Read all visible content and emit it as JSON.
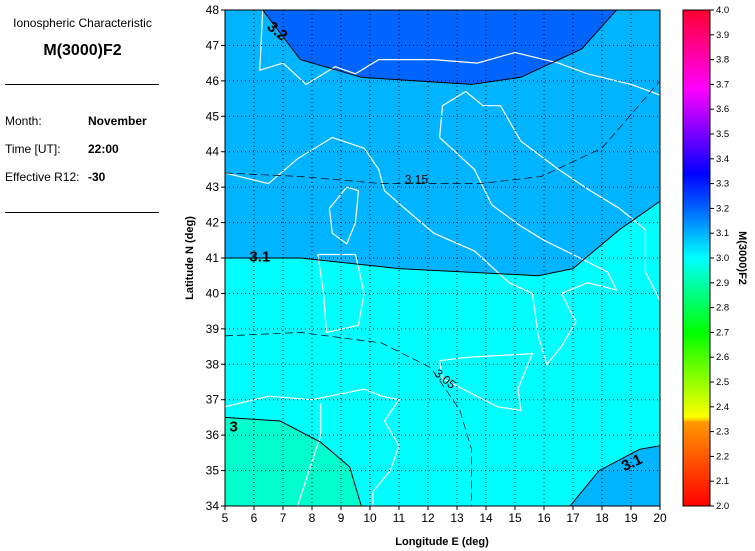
{
  "panel": {
    "subtitle": "Ionospheric Characteristic",
    "title": "M(3000)F2",
    "month_label": "Month:",
    "month": "November",
    "time_label": "Time [UT]:",
    "time": "22:00",
    "r12_label": "Effective R12:",
    "r12": "-30"
  },
  "chart_data": {
    "type": "heatmap",
    "subtype": "filled-contour map",
    "xlabel": "Longitude E (deg)",
    "ylabel": "Latitude N (deg)",
    "xlim": [
      5,
      20
    ],
    "ylim": [
      34,
      48
    ],
    "xticks": [
      "5",
      "6",
      "7",
      "8",
      "9",
      "10",
      "11",
      "12",
      "13",
      "14",
      "15",
      "16",
      "17",
      "18",
      "19",
      "20"
    ],
    "yticks": [
      "34",
      "35",
      "36",
      "37",
      "38",
      "39",
      "40",
      "41",
      "42",
      "43",
      "44",
      "45",
      "46",
      "47",
      "48"
    ],
    "grid": true,
    "contours": [
      {
        "level": "3.2",
        "style": "solid",
        "points": [
          [
            6.3,
            48
          ],
          [
            7.6,
            46.6
          ],
          [
            9.7,
            46.1
          ],
          [
            13.5,
            45.9
          ],
          [
            15.2,
            46.1
          ],
          [
            17.3,
            46.9
          ],
          [
            18.5,
            48
          ]
        ]
      },
      {
        "level": "3.15",
        "style": "dashed",
        "points": [
          [
            5,
            43.4
          ],
          [
            7.6,
            43.3
          ],
          [
            10.4,
            43.1
          ],
          [
            13.8,
            43.1
          ],
          [
            15.9,
            43.3
          ],
          [
            18,
            44.1
          ],
          [
            20,
            46
          ]
        ]
      },
      {
        "level": "3.1",
        "style": "solid",
        "points": [
          [
            5,
            41
          ],
          [
            7.6,
            41
          ],
          [
            11,
            40.7
          ],
          [
            15.8,
            40.5
          ],
          [
            17,
            40.7
          ],
          [
            18.6,
            41.8
          ],
          [
            20,
            42.6
          ]
        ]
      },
      {
        "level": "3.05",
        "style": "dashed",
        "points": [
          [
            5,
            38.8
          ],
          [
            7.6,
            38.9
          ],
          [
            10.4,
            38.6
          ],
          [
            12.1,
            37.9
          ],
          [
            13.1,
            36.7
          ],
          [
            13.5,
            35.6
          ],
          [
            13.5,
            34
          ]
        ]
      },
      {
        "level": "3",
        "style": "solid",
        "points": [
          [
            5,
            36.5
          ],
          [
            6.9,
            36.4
          ],
          [
            8.3,
            35.8
          ],
          [
            9.3,
            35.1
          ],
          [
            9.7,
            34
          ]
        ]
      },
      {
        "level": "3.1",
        "style": "solid",
        "points": [
          [
            16.9,
            34
          ],
          [
            17.9,
            35
          ],
          [
            19.3,
            35.6
          ],
          [
            20,
            35.7
          ]
        ]
      }
    ],
    "colorbar": {
      "label": "M(3000)F2",
      "range": [
        2.0,
        4.0
      ],
      "ticks": [
        "2.0",
        "2.1",
        "2.2",
        "2.3",
        "2.4",
        "2.5",
        "2.6",
        "2.7",
        "2.8",
        "2.9",
        "3.0",
        "3.1",
        "3.2",
        "3.3",
        "3.4",
        "3.5",
        "3.6",
        "3.7",
        "3.8",
        "3.9",
        "4.0"
      ]
    },
    "colors": {
      "above_3.2": "#0064ff",
      "3.1_3.2": "#00b4ff",
      "3.0_3.1": "#00ffff",
      "below_3.0": "#00ffcc",
      "coastline": "#ffffff"
    }
  }
}
